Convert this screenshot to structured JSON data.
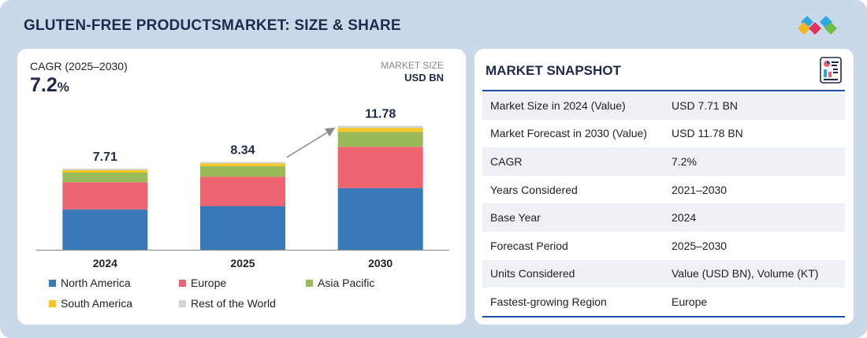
{
  "header": {
    "title": "GLUTEN-FREE PRODUCTSMARKET: SIZE & SHARE"
  },
  "left_panel": {
    "cagr_label": "CAGR (2025–2030)",
    "cagr_value": "7.2",
    "cagr_unit": "%",
    "market_size_label": "MARKET SIZE",
    "market_size_unit": "USD BN"
  },
  "chart_data": {
    "type": "bar",
    "stacked": true,
    "categories": [
      "2024",
      "2025",
      "2030"
    ],
    "totals": [
      7.71,
      8.34,
      11.78
    ],
    "series": [
      {
        "name": "North America",
        "color": "#3a79b8",
        "values": [
          3.84,
          4.15,
          5.86
        ]
      },
      {
        "name": "Europe",
        "color": "#ee6470",
        "values": [
          2.57,
          2.78,
          3.92
        ]
      },
      {
        "name": "Asia Pacific",
        "color": "#9aba59",
        "values": [
          0.93,
          1.01,
          1.43
        ]
      },
      {
        "name": "South America",
        "color": "#f6c623",
        "values": [
          0.24,
          0.26,
          0.37
        ]
      },
      {
        "name": "Rest of the World",
        "color": "#d3d3d3",
        "values": [
          0.13,
          0.14,
          0.2
        ]
      }
    ],
    "ylim": [
      0,
      12.5
    ],
    "grid": false,
    "legend": "bottom",
    "arrow": {
      "from": "2025",
      "to": "2030"
    }
  },
  "snapshot": {
    "title": "MARKET SNAPSHOT",
    "rows": [
      {
        "key": "Market Size in 2024 (Value)",
        "value": "USD 7.71 BN"
      },
      {
        "key": "Market Forecast in 2030 (Value)",
        "value": "USD 11.78 BN"
      },
      {
        "key": "CAGR",
        "value": "7.2%"
      },
      {
        "key": "Years Considered",
        "value": "2021–2030"
      },
      {
        "key": "Base Year",
        "value": "2024"
      },
      {
        "key": "Forecast Period",
        "value": "2025–2030"
      },
      {
        "key": "Units Considered",
        "value": "Value (USD BN), Volume (KT)"
      },
      {
        "key": "Fastest-growing Region",
        "value": "Europe"
      }
    ]
  },
  "icons": {
    "logo": "brand-diamonds-logo",
    "snapshot": "report-document-icon"
  }
}
